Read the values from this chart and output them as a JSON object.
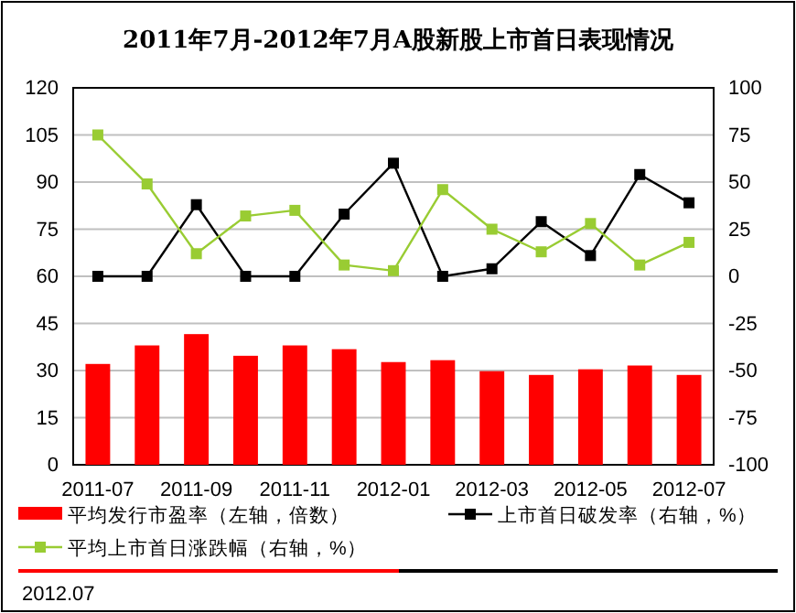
{
  "chart_data": {
    "type": "bar",
    "title": "2011年7月-2012年7月A股新股上市首日表现情况",
    "categories": [
      "2011-07",
      null,
      "2011-09",
      null,
      "2011-11",
      null,
      "2012-01",
      null,
      "2012-03",
      null,
      "2012-05",
      null,
      "2012-07"
    ],
    "series": [
      {
        "name": "平均发行市盈率（左轴，倍数）",
        "color": "#ff0000",
        "values": [
          32.1,
          38,
          41.6,
          34.7,
          38,
          36.8,
          32.7,
          33.3,
          29.8,
          28.6,
          30.4,
          31.6,
          28.6
        ]
      },
      {
        "name": "上市首日破发率（右轴，%）",
        "type": "line",
        "axis": "y2",
        "color": "#000000",
        "values": [
          0,
          0,
          38,
          0,
          0,
          33,
          60,
          0,
          4,
          29,
          11,
          54,
          39
        ]
      },
      {
        "name": "平均上市首日涨跌幅（右轴，%）",
        "type": "line",
        "axis": "y2",
        "color": "#99cc33",
        "values": [
          75,
          49,
          12,
          32,
          35,
          6,
          3,
          46,
          25,
          13,
          28,
          6,
          18
        ]
      }
    ],
    "ylim": [
      0,
      120
    ],
    "yticks": [
      0,
      15,
      30,
      45,
      60,
      75,
      90,
      105,
      120
    ],
    "y2lim": [
      -100,
      100
    ],
    "y2ticks": [
      -100,
      -75,
      -50,
      -25,
      0,
      25,
      50,
      75,
      100
    ],
    "grid": "y",
    "legend": "bottom",
    "marker": "square",
    "line_style": "solid",
    "annotations": [
      "2012.07"
    ]
  }
}
